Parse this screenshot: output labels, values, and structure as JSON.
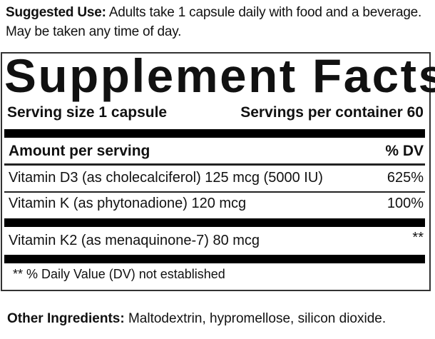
{
  "suggested_use": {
    "label": "Suggested Use:",
    "text": "Adults take 1 capsule daily with food and a beverage. May be taken any time of day."
  },
  "facts": {
    "title": "Supplement Facts",
    "serving_size": "Serving size 1 capsule",
    "servings_per_container": "Servings per container 60",
    "amount_header": "Amount per serving",
    "dv_header": "% DV",
    "rows": [
      {
        "name": "Vitamin D3 (as cholecalciferol) 125 mcg (5000 IU)",
        "dv": "625%"
      },
      {
        "name": "Vitamin K (as phytonadione) 120 mcg",
        "dv": "100%"
      },
      {
        "name": "Vitamin K2 (as menaquinone-7) 80 mcg",
        "dv": "**"
      }
    ],
    "footnote": "** % Daily Value (DV) not established"
  },
  "other_ingredients": {
    "label": "Other Ingredients:",
    "text": "Maltodextrin, hypromellose, silicon dioxide."
  }
}
